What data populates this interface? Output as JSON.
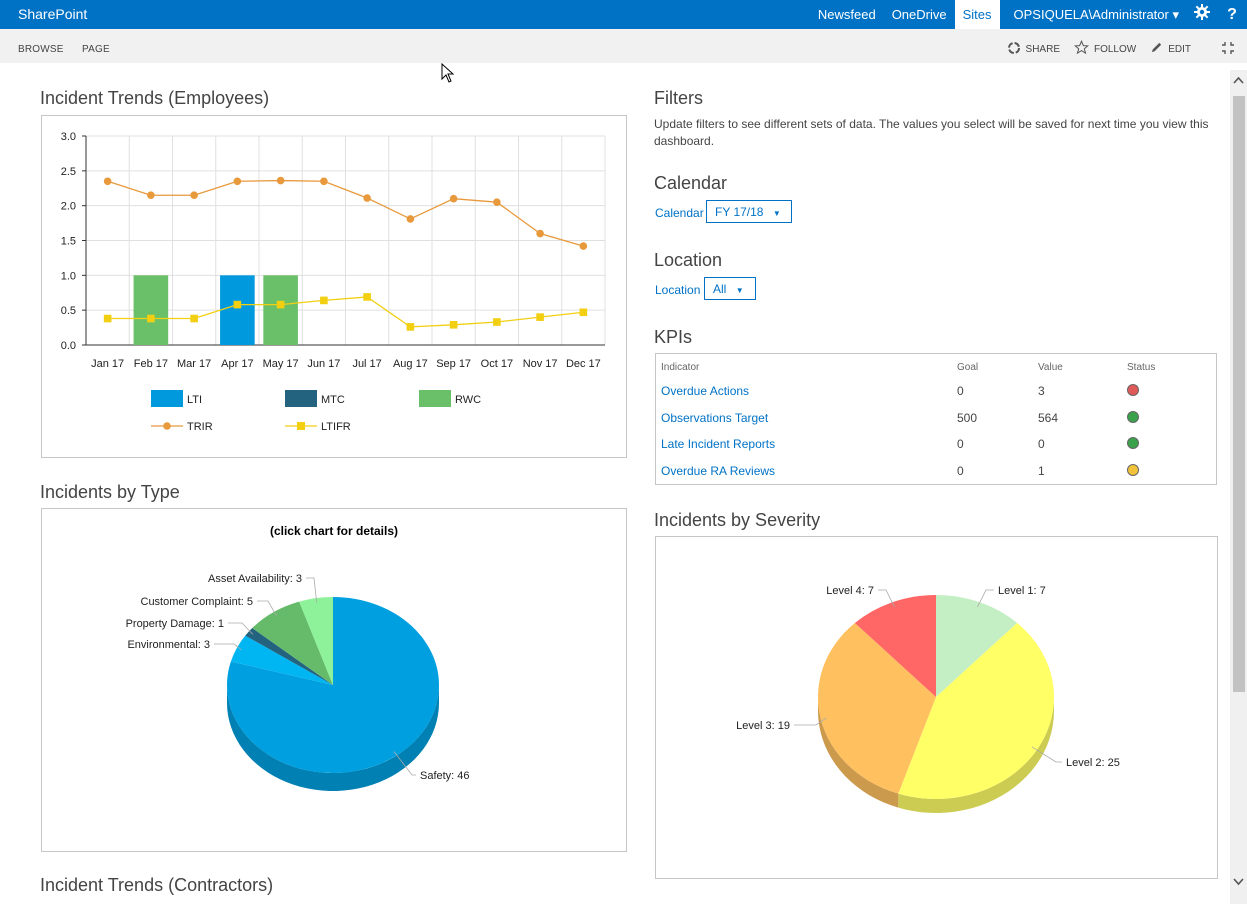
{
  "suitebar": {
    "brand": "SharePoint",
    "links": [
      "Newsfeed",
      "OneDrive",
      "Sites"
    ],
    "active_link": "Sites",
    "user": "OPSIQUELA\\Administrator",
    "user_caret": "▾",
    "settings_icon": "gear-icon",
    "help_icon": "question-icon",
    "help_label": "?"
  },
  "ribbon": {
    "tabs": [
      "BROWSE",
      "PAGE"
    ],
    "actions": [
      {
        "label": "SHARE",
        "icon": "share-icon"
      },
      {
        "label": "FOLLOW",
        "icon": "star-icon"
      },
      {
        "label": "EDIT",
        "icon": "pencil-icon"
      }
    ],
    "focus_icon": "focus-content-icon"
  },
  "sections": {
    "trends_employees": "Incident Trends (Employees)",
    "by_type": "Incidents by Type",
    "trends_contractors": "Incident Trends (Contractors)",
    "filters": "Filters",
    "calendar": "Calendar",
    "location": "Location",
    "kpis": "KPIs",
    "by_severity": "Incidents by Severity"
  },
  "filters": {
    "description": "Update filters to see different sets of data.  The values you select will be saved for next time you view this dashboard.",
    "calendar_label": "Calendar",
    "calendar_value": "FY 17/18",
    "location_label": "Location",
    "location_value": "All",
    "caret": "▼"
  },
  "kpis": {
    "headers": [
      "Indicator",
      "Goal",
      "Value",
      "Status"
    ],
    "rows": [
      {
        "indicator": "Overdue Actions",
        "goal": "0",
        "value": "3",
        "status_color": "#e05a5a"
      },
      {
        "indicator": "Observations Target",
        "goal": "500",
        "value": "564",
        "status_color": "#3aa24a"
      },
      {
        "indicator": "Late Incident Reports",
        "goal": "0",
        "value": "0",
        "status_color": "#3aa24a"
      },
      {
        "indicator": "Overdue RA Reviews",
        "goal": "0",
        "value": "1",
        "status_color": "#f2c23a"
      }
    ]
  },
  "chart_data": [
    {
      "type": "bar",
      "categories": [
        "Jan 17",
        "Feb 17",
        "Mar 17",
        "Apr 17",
        "May 17",
        "Jun 17",
        "Jul 17",
        "Aug 17",
        "Sep 17",
        "Oct 17",
        "Nov 17",
        "Dec 17"
      ],
      "y_ticks": [
        "0.0",
        "0.5",
        "1.0",
        "1.5",
        "2.0",
        "2.5",
        "3.0"
      ],
      "ylim": [
        0,
        3
      ],
      "grid": true,
      "legend_position": "bottom",
      "series": [
        {
          "name": "LTI",
          "kind": "bar",
          "color": "#0099dd",
          "values": [
            0,
            0,
            0,
            1,
            0,
            0,
            0,
            0,
            0,
            0,
            0,
            0
          ]
        },
        {
          "name": "MTC",
          "kind": "bar",
          "color": "#236380",
          "values": [
            0,
            0,
            0,
            0,
            0,
            0,
            0,
            0,
            0,
            0,
            0,
            0
          ]
        },
        {
          "name": "RWC",
          "kind": "bar",
          "color": "#6abf69",
          "values": [
            0,
            1,
            0,
            0,
            1,
            0,
            0,
            0,
            0,
            0,
            0,
            0
          ]
        },
        {
          "name": "TRIR",
          "kind": "line",
          "color": "#e8993c",
          "values": [
            2.35,
            2.15,
            2.15,
            2.35,
            2.36,
            2.35,
            2.11,
            1.81,
            2.1,
            2.05,
            1.6,
            1.42
          ]
        },
        {
          "name": "LTIFR",
          "kind": "line",
          "color": "#f2cf10",
          "values": [
            0.38,
            0.38,
            0.38,
            0.58,
            0.58,
            0.64,
            0.69,
            0.26,
            0.29,
            0.33,
            0.4,
            0.47
          ]
        }
      ]
    },
    {
      "type": "pie",
      "title": "(click chart for details)",
      "labels": [
        "Safety",
        "Environmental",
        "Property Damage",
        "Customer Complaint",
        "Asset Availability"
      ],
      "values": [
        46,
        3,
        1,
        5,
        3
      ],
      "colors": [
        "#00a0e0",
        "#00b6f2",
        "#236380",
        "#66bb6a",
        "#8ef29a"
      ]
    },
    {
      "type": "pie",
      "labels": [
        "Level 1",
        "Level 2",
        "Level 3",
        "Level 4"
      ],
      "values": [
        7,
        25,
        19,
        7
      ],
      "colors": [
        "#c4efc4",
        "#ffff66",
        "#ffc060",
        "#ff6666"
      ]
    }
  ]
}
